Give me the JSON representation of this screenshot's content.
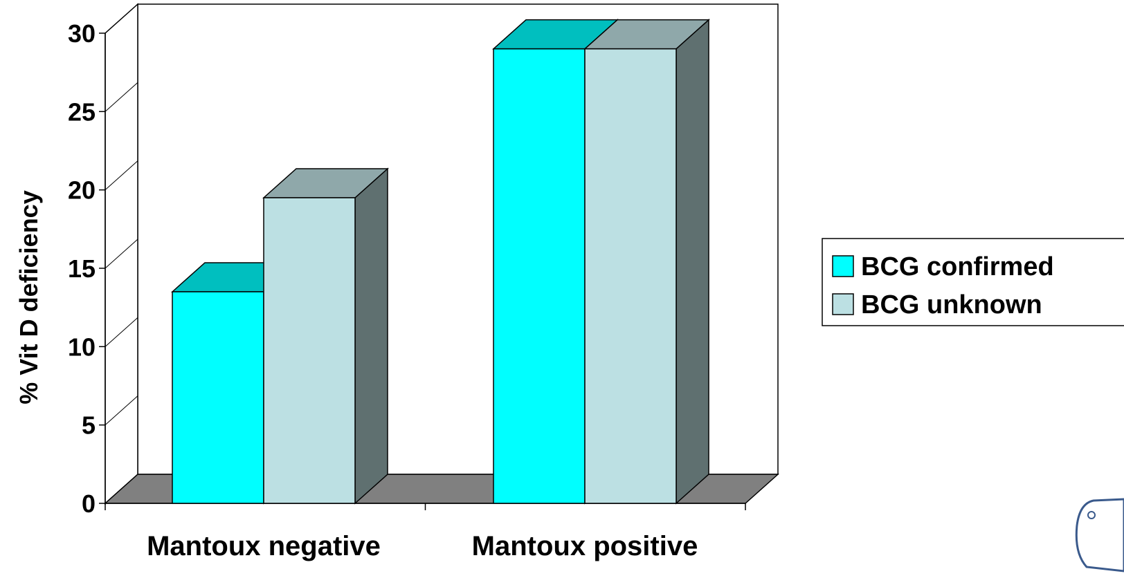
{
  "chart_data": {
    "type": "bar",
    "style": "3d-clustered",
    "title": "",
    "xlabel": "",
    "ylabel": "% Vit D deficiency",
    "ylim": [
      0,
      30
    ],
    "yticks": [
      0,
      5,
      10,
      15,
      20,
      25,
      30
    ],
    "ytick_labels": [
      "0",
      "5",
      "10",
      "15",
      "20",
      "25",
      "30"
    ],
    "grid": false,
    "legend_position": "right",
    "categories": [
      "Mantoux negative",
      "Mantoux positive"
    ],
    "series": [
      {
        "name": "BCG confirmed",
        "values": [
          13.5,
          29
        ],
        "colors": {
          "front": "#00ffff",
          "top": "#00bfbf",
          "side": "#5f7070"
        }
      },
      {
        "name": "BCG unknown",
        "values": [
          19.5,
          29
        ],
        "colors": {
          "front": "#bce0e3",
          "top": "#8fa8aa",
          "side": "#5f7070"
        }
      }
    ],
    "colors": {
      "floor": "#808080",
      "outline": "#000000",
      "background": "#ffffff"
    }
  }
}
